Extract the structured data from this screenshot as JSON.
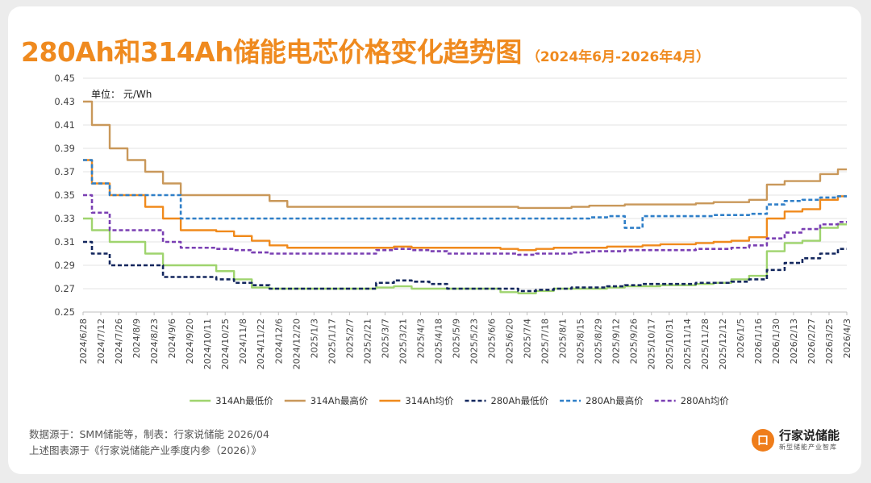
{
  "header": {
    "title": "280Ah和314Ah储能电芯价格变化趋势图",
    "subtitle": "（2024年6月-2026年4月）"
  },
  "footer": {
    "source_line": "数据源于：SMM储能等，制表：行家说储能 2026/04",
    "reference_line": "上述图表源于《行家说储能产业季度内参（2026）》"
  },
  "brand": {
    "mark": "口",
    "name": "行家说储能",
    "slogan": "新型储能产业智库"
  },
  "chart_data": {
    "type": "line",
    "title": "280Ah和314Ah储能电芯价格变化趋势图",
    "unit_label": "单位：  元/Wh",
    "ylim": [
      0.25,
      0.45
    ],
    "yticks": [
      "0.45",
      "0.43",
      "0.41",
      "0.39",
      "0.37",
      "0.35",
      "0.33",
      "0.31",
      "0.29",
      "0.27",
      "0.25"
    ],
    "grid": true,
    "legend_position": "bottom",
    "categories": [
      "2024/6/28",
      "2024/7/12",
      "2024/7/26",
      "2024/8/9",
      "2024/8/23",
      "2024/9/6",
      "2024/9/20",
      "2024/10/11",
      "2024/10/25",
      "2024/11/8",
      "2024/11/22",
      "2024/12/6",
      "2024/12/20",
      "2025/1/3",
      "2025/1/17",
      "2025/2/7",
      "2025/2/21",
      "2025/3/7",
      "2025/3/21",
      "2025/4/3",
      "2025/4/18",
      "2025/5/9",
      "2025/5/23",
      "2025/6/6",
      "2025/6/20",
      "2025/7/4",
      "2025/7/18",
      "2025/8/1",
      "2025/8/15",
      "2025/8/29",
      "2025/9/12",
      "2025/9/26",
      "2025/10/17",
      "2025/10/31",
      "2025/11/14",
      "2025/11/28",
      "2025/12/12",
      "2026/1/5",
      "2026/1/16",
      "2026/1/30",
      "2026/2/13",
      "2026/2/27",
      "2026/3/25",
      "2026/4/3"
    ],
    "series": [
      {
        "name": "314Ah最低价",
        "color": "#9fd46e",
        "dash": "solid",
        "values": [
          0.33,
          0.32,
          0.31,
          0.31,
          0.3,
          0.29,
          0.29,
          0.29,
          0.285,
          0.278,
          0.271,
          0.27,
          0.27,
          0.27,
          0.27,
          0.27,
          0.27,
          0.271,
          0.272,
          0.27,
          0.27,
          0.27,
          0.27,
          0.27,
          0.267,
          0.266,
          0.268,
          0.27,
          0.27,
          0.27,
          0.271,
          0.272,
          0.272,
          0.273,
          0.273,
          0.274,
          0.275,
          0.278,
          0.281,
          0.302,
          0.309,
          0.311,
          0.322,
          0.325
        ]
      },
      {
        "name": "314Ah最高价",
        "color": "#c9985a",
        "dash": "solid",
        "values": [
          0.43,
          0.41,
          0.39,
          0.38,
          0.37,
          0.36,
          0.35,
          0.35,
          0.35,
          0.35,
          0.35,
          0.345,
          0.34,
          0.34,
          0.34,
          0.34,
          0.34,
          0.34,
          0.34,
          0.34,
          0.34,
          0.34,
          0.34,
          0.34,
          0.34,
          0.339,
          0.339,
          0.339,
          0.34,
          0.341,
          0.341,
          0.342,
          0.342,
          0.342,
          0.342,
          0.343,
          0.344,
          0.344,
          0.346,
          0.359,
          0.362,
          0.362,
          0.368,
          0.372
        ]
      },
      {
        "name": "314Ah均价",
        "color": "#f08a1c",
        "dash": "solid",
        "values": [
          0.38,
          0.36,
          0.35,
          0.35,
          0.34,
          0.33,
          0.32,
          0.32,
          0.319,
          0.315,
          0.311,
          0.307,
          0.305,
          0.305,
          0.305,
          0.305,
          0.305,
          0.305,
          0.306,
          0.305,
          0.305,
          0.305,
          0.305,
          0.305,
          0.304,
          0.303,
          0.304,
          0.305,
          0.305,
          0.305,
          0.306,
          0.306,
          0.307,
          0.308,
          0.308,
          0.309,
          0.31,
          0.311,
          0.314,
          0.33,
          0.336,
          0.338,
          0.346,
          0.349
        ]
      },
      {
        "name": "280Ah最低价",
        "color": "#13275e",
        "dash": "dashed",
        "values": [
          0.31,
          0.3,
          0.29,
          0.29,
          0.29,
          0.28,
          0.28,
          0.28,
          0.278,
          0.275,
          0.273,
          0.27,
          0.27,
          0.27,
          0.27,
          0.27,
          0.27,
          0.275,
          0.277,
          0.276,
          0.274,
          0.27,
          0.27,
          0.27,
          0.27,
          0.268,
          0.269,
          0.27,
          0.271,
          0.271,
          0.272,
          0.273,
          0.274,
          0.274,
          0.274,
          0.275,
          0.275,
          0.276,
          0.278,
          0.286,
          0.292,
          0.296,
          0.3,
          0.304
        ]
      },
      {
        "name": "280Ah最高价",
        "color": "#2f7fc8",
        "dash": "dashed",
        "values": [
          0.38,
          0.36,
          0.35,
          0.35,
          0.35,
          0.35,
          0.33,
          0.33,
          0.33,
          0.33,
          0.33,
          0.33,
          0.33,
          0.33,
          0.33,
          0.33,
          0.33,
          0.33,
          0.33,
          0.33,
          0.33,
          0.33,
          0.33,
          0.33,
          0.33,
          0.33,
          0.33,
          0.33,
          0.33,
          0.331,
          0.332,
          0.322,
          0.332,
          0.332,
          0.332,
          0.332,
          0.333,
          0.333,
          0.334,
          0.342,
          0.345,
          0.346,
          0.348,
          0.349
        ]
      },
      {
        "name": "280Ah均价",
        "color": "#7a3fb3",
        "dash": "dashed",
        "values": [
          0.35,
          0.335,
          0.32,
          0.32,
          0.32,
          0.31,
          0.305,
          0.305,
          0.304,
          0.303,
          0.301,
          0.3,
          0.3,
          0.3,
          0.3,
          0.3,
          0.3,
          0.303,
          0.304,
          0.303,
          0.302,
          0.3,
          0.3,
          0.3,
          0.3,
          0.299,
          0.3,
          0.3,
          0.301,
          0.302,
          0.302,
          0.303,
          0.303,
          0.303,
          0.303,
          0.304,
          0.304,
          0.305,
          0.307,
          0.313,
          0.318,
          0.321,
          0.325,
          0.327
        ]
      }
    ]
  }
}
